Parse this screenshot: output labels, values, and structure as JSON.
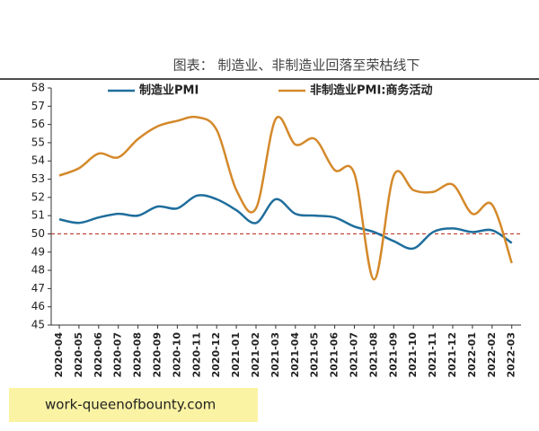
{
  "chart_data": {
    "type": "line",
    "title": "图表： 制造业、非制造业回落至荣枯线下",
    "categories": [
      "2020-04",
      "2020-05",
      "2020-06",
      "2020-07",
      "2020-08",
      "2020-09",
      "2020-10",
      "2020-11",
      "2020-12",
      "2021-01",
      "2021-02",
      "2021-03",
      "2021-04",
      "2021-05",
      "2021-06",
      "2021-07",
      "2021-08",
      "2021-09",
      "2021-10",
      "2021-11",
      "2021-12",
      "2022-01",
      "2022-02",
      "2022-03"
    ],
    "series": [
      {
        "name": "制造业PMI",
        "color": "#1f6e9c",
        "values": [
          50.8,
          50.6,
          50.9,
          51.1,
          51.0,
          51.5,
          51.4,
          52.1,
          51.9,
          51.3,
          50.6,
          51.9,
          51.1,
          51.0,
          50.9,
          50.4,
          50.1,
          49.6,
          49.2,
          50.1,
          50.3,
          50.1,
          50.2,
          49.5
        ]
      },
      {
        "name": "非制造业PMI:商务活动",
        "color": "#d4892a",
        "values": [
          53.2,
          53.6,
          54.4,
          54.2,
          55.2,
          55.9,
          56.2,
          56.4,
          55.7,
          52.4,
          51.4,
          56.3,
          54.9,
          55.2,
          53.5,
          53.3,
          47.5,
          53.2,
          52.4,
          52.3,
          52.7,
          51.1,
          51.6,
          48.4
        ]
      }
    ],
    "ylim": [
      45,
      58
    ],
    "yticks": [
      45,
      46,
      47,
      48,
      49,
      50,
      51,
      52,
      53,
      54,
      55,
      56,
      57,
      58
    ],
    "reference_line": {
      "value": 50,
      "color": "#c0392b"
    },
    "watermark": "work-queenofbounty.com"
  }
}
